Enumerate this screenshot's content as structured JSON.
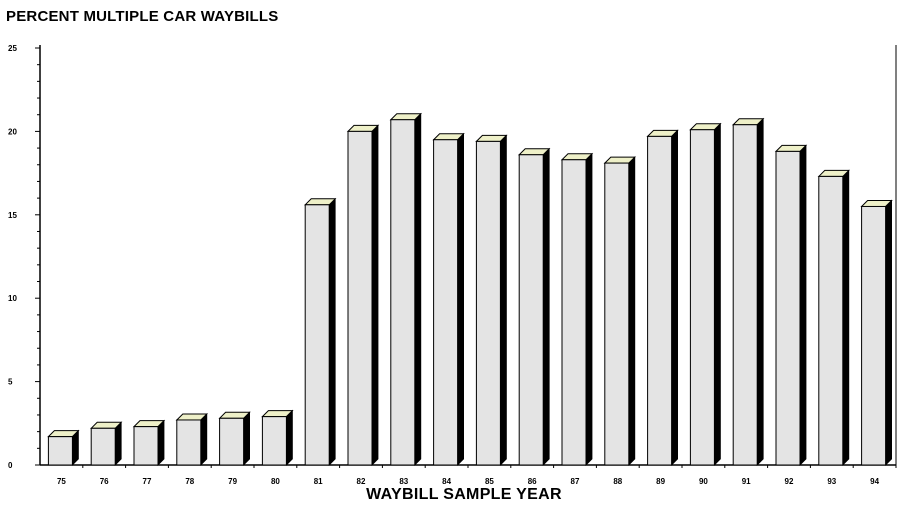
{
  "chart_data": {
    "type": "bar",
    "title": "PERCENT MULTIPLE CAR WAYBILLS",
    "xlabel": "WAYBILL SAMPLE YEAR",
    "ylabel": "",
    "categories": [
      "75",
      "76",
      "77",
      "78",
      "79",
      "80",
      "81",
      "82",
      "83",
      "84",
      "85",
      "86",
      "87",
      "88",
      "89",
      "90",
      "91",
      "92",
      "93",
      "94"
    ],
    "values": [
      1.7,
      2.2,
      2.3,
      2.7,
      2.8,
      2.9,
      15.6,
      20.0,
      20.7,
      19.5,
      19.4,
      18.6,
      18.3,
      18.1,
      19.7,
      20.1,
      20.4,
      18.8,
      17.3,
      15.5
    ],
    "ylim": [
      0,
      25
    ],
    "yticks": [
      0,
      5,
      10,
      15,
      20,
      25
    ],
    "grid": false,
    "bar_face_color": "#e4e4e4",
    "bar_side_color": "#000000",
    "bar_top_color": "#eef0c8"
  }
}
